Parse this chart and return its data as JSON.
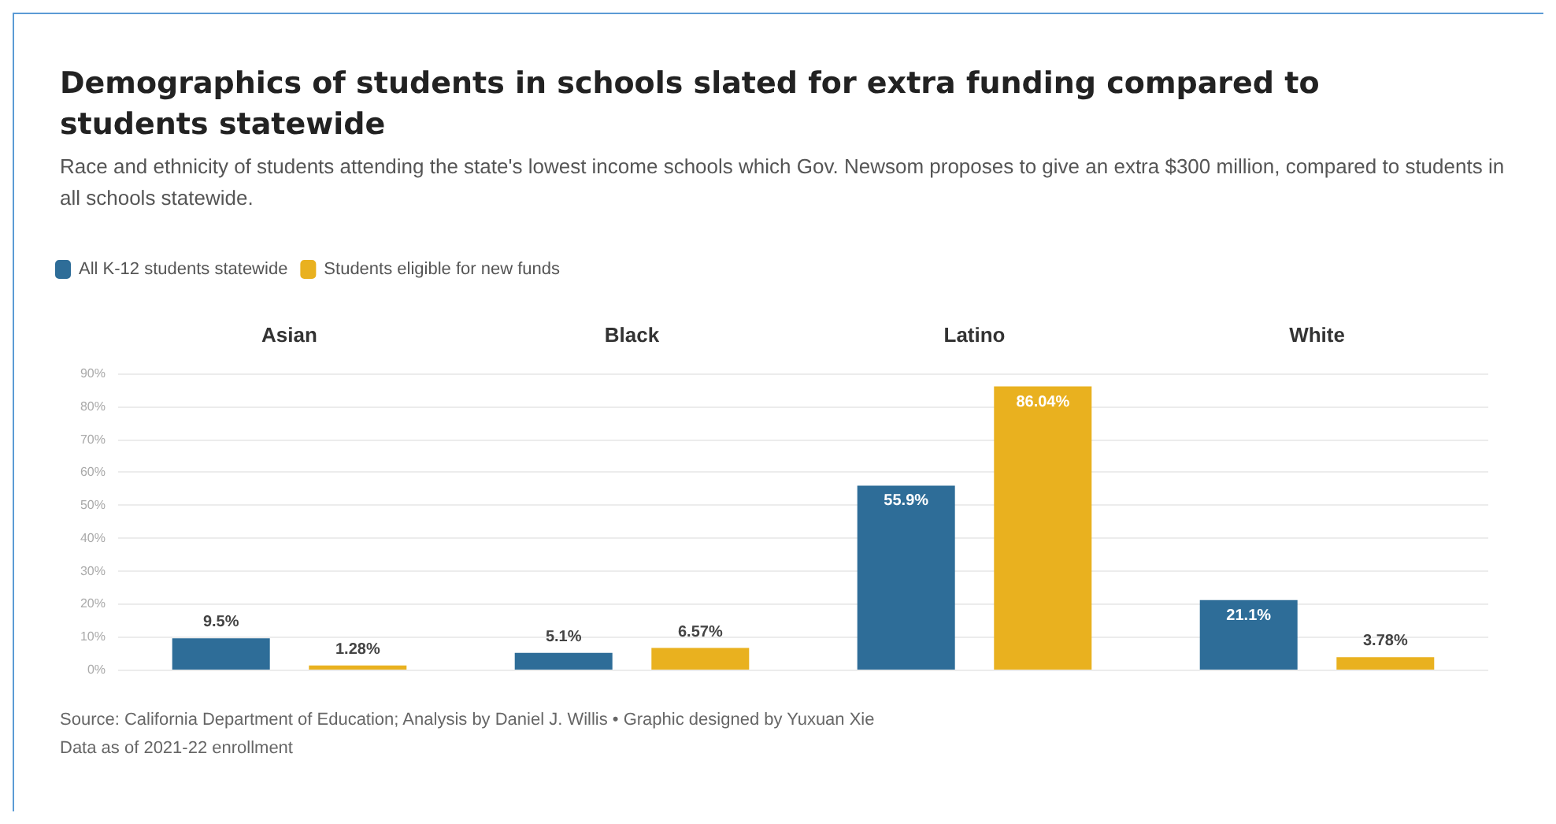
{
  "chart_data": {
    "type": "bar",
    "title": "Demographics of students in schools slated for extra funding compared to students statewide",
    "subtitle": "Race and ethnicity of students attending the state's lowest income schools which Gov. Newsom proposes to give an extra $300 million, compared to students in all schools statewide.",
    "categories": [
      "Asian",
      "Black",
      "Latino",
      "White"
    ],
    "series": [
      {
        "name": "All K-12 students statewide",
        "color": "#2e6d98",
        "values": [
          9.5,
          5.1,
          55.9,
          21.1
        ],
        "value_labels": [
          "9.5%",
          "5.1%",
          "55.9%",
          "21.1%"
        ]
      },
      {
        "name": "Students eligible for new funds",
        "color": "#e9b11f",
        "values": [
          1.28,
          6.57,
          86.04,
          3.78
        ],
        "value_labels": [
          "1.28%",
          "6.57%",
          "86.04%",
          "3.78%"
        ]
      }
    ],
    "ylim": [
      0,
      90
    ],
    "yticks": [
      {
        "value": 0,
        "label": "0%"
      },
      {
        "value": 10,
        "label": "10%"
      },
      {
        "value": 20,
        "label": "20%"
      },
      {
        "value": 30,
        "label": "30%"
      },
      {
        "value": 40,
        "label": "40%"
      },
      {
        "value": 50,
        "label": "50%"
      },
      {
        "value": 60,
        "label": "60%"
      },
      {
        "value": 70,
        "label": "70%"
      },
      {
        "value": 80,
        "label": "80%"
      },
      {
        "value": 90,
        "label": "90%"
      }
    ],
    "grid": "y",
    "legend": "top left",
    "annotations": [
      "Source: California Department of Education; Analysis by Daniel J. Willis • Graphic designed by Yuxuan Xie",
      "Data as of 2021-22 enrollment"
    ]
  }
}
